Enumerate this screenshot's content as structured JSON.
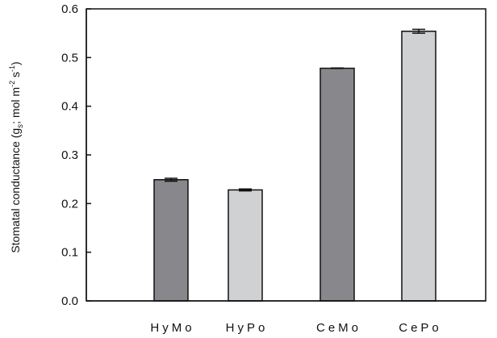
{
  "chart_data": {
    "type": "bar",
    "categories": [
      "HyMo",
      "HyPo",
      "CeMo",
      "CePo"
    ],
    "values": [
      0.249,
      0.228,
      0.478,
      0.554
    ],
    "errors": [
      0.003,
      0.002,
      0.0005,
      0.004
    ],
    "bar_colors": [
      "#87878c",
      "#d0d1d3",
      "#87878c",
      "#d0d1d3"
    ],
    "ylabel_parts": {
      "main": "Stomatal conductance (g",
      "sub": "s",
      "mid": "; mol m",
      "sup1": "-2",
      "sep": " s",
      "sup2": "-1",
      "end": ")"
    },
    "ylim": [
      0.0,
      0.6
    ],
    "yticks": [
      0.0,
      0.1,
      0.2,
      0.3,
      0.4,
      0.5,
      0.6
    ],
    "ytick_labels": [
      "0.0",
      "0.1",
      "0.2",
      "0.3",
      "0.4",
      "0.5",
      "0.6"
    ],
    "grid": false
  }
}
